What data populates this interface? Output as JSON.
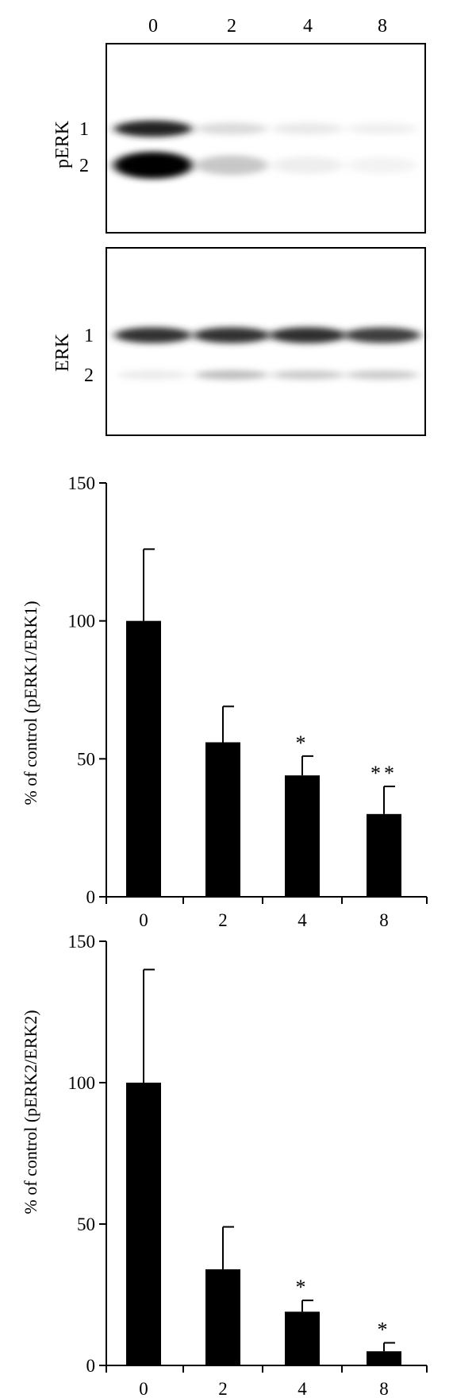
{
  "blot": {
    "lanes": [
      "0",
      "2",
      "4",
      "8"
    ],
    "panels": [
      {
        "protein": "pERK",
        "rows": [
          "1",
          "2"
        ],
        "band_intensity": {
          "1": [
            0.85,
            0.22,
            0.14,
            0.09
          ],
          "2": [
            1.0,
            0.32,
            0.1,
            0.06
          ]
        }
      },
      {
        "protein": "ERK",
        "rows": [
          "1",
          "2"
        ],
        "band_intensity": {
          "1": [
            0.78,
            0.78,
            0.8,
            0.74
          ],
          "2": [
            0.14,
            0.36,
            0.3,
            0.3
          ]
        }
      }
    ]
  },
  "chart_data": [
    {
      "type": "bar",
      "categories": [
        "0",
        "2",
        "4",
        "8"
      ],
      "values": [
        100,
        56,
        44,
        30
      ],
      "errors": [
        26,
        13,
        7,
        10
      ],
      "significance": [
        "",
        "",
        "*",
        "**"
      ],
      "ylabel": "% of control (pERK1/ERK1)",
      "xlabel": "",
      "ylim": [
        0,
        150
      ],
      "yticks": [
        "0",
        "50",
        "100",
        "150"
      ],
      "bar_color": "#000000"
    },
    {
      "type": "bar",
      "categories": [
        "0",
        "2",
        "4",
        "8"
      ],
      "values": [
        100,
        34,
        19,
        5
      ],
      "errors": [
        40,
        15,
        4,
        3
      ],
      "significance": [
        "",
        "",
        "*",
        "*"
      ],
      "ylabel": "% of control (pERK2/ERK2)",
      "xlabel": "",
      "ylim": [
        0,
        150
      ],
      "yticks": [
        "0",
        "50",
        "100",
        "150"
      ],
      "bar_color": "#000000"
    }
  ]
}
